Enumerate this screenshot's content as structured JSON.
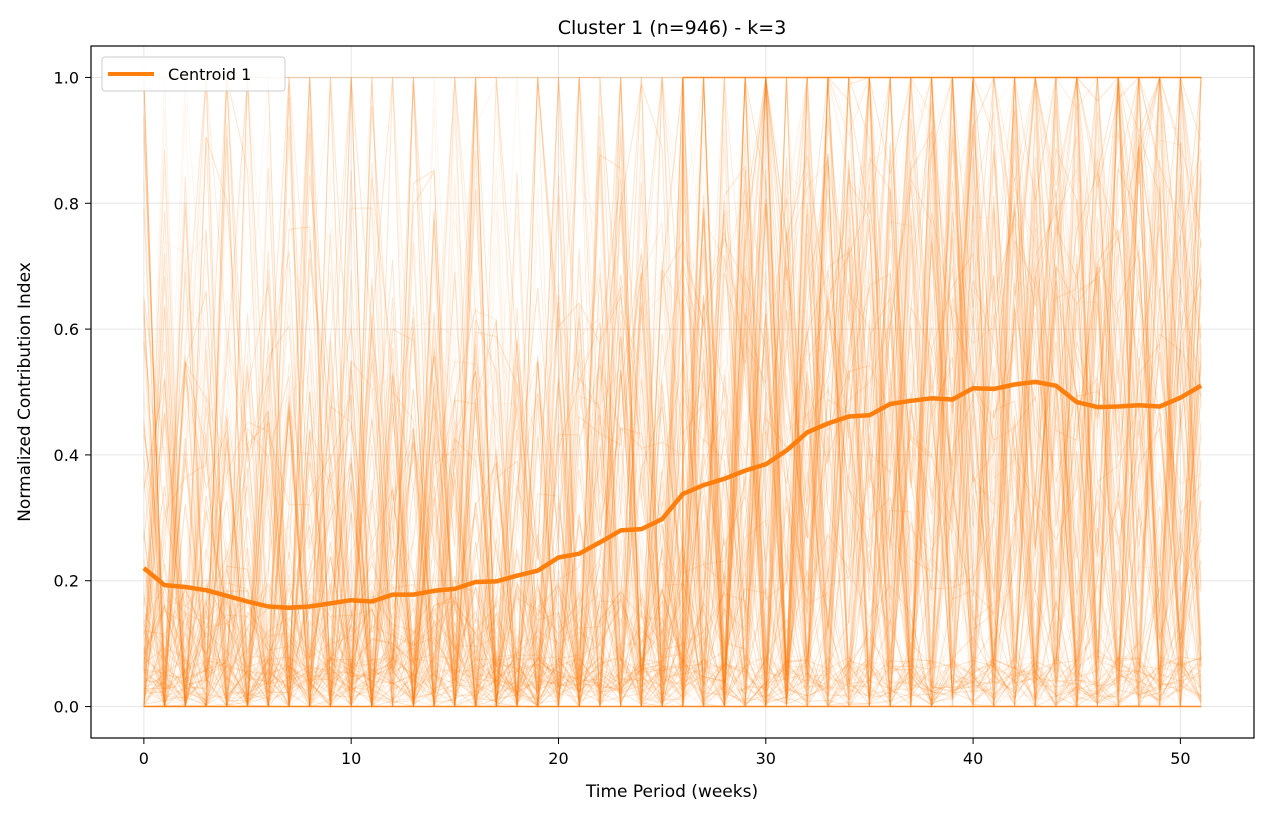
{
  "chart_data": {
    "type": "line",
    "title": "Cluster 1 (n=946) - k=3",
    "xlabel": "Time Period (weeks)",
    "ylabel": "Normalized Contribution Index",
    "xlim": [
      -2.55,
      53.55
    ],
    "ylim": [
      -0.05,
      1.05
    ],
    "xticks": [
      0,
      10,
      20,
      30,
      40,
      50
    ],
    "xtick_labels": [
      "0",
      "10",
      "20",
      "30",
      "40",
      "50"
    ],
    "yticks": [
      0.0,
      0.2,
      0.4,
      0.6,
      0.8,
      1.0
    ],
    "ytick_labels": [
      "0.0",
      "0.2",
      "0.4",
      "0.6",
      "0.8",
      "1.0"
    ],
    "grid": true,
    "legend_position": "top-left",
    "colors": {
      "series": "#ff7f0e",
      "background": "#ffffff",
      "grid": "#e6e6e6"
    },
    "series": [
      {
        "name": "Centroid 1",
        "x": [
          0,
          1,
          2,
          3,
          4,
          5,
          6,
          7,
          8,
          9,
          10,
          11,
          12,
          13,
          14,
          15,
          16,
          17,
          18,
          19,
          20,
          21,
          22,
          23,
          24,
          25,
          26,
          27,
          28,
          29,
          30,
          31,
          32,
          33,
          34,
          35,
          36,
          37,
          38,
          39,
          40,
          41,
          42,
          43,
          44,
          45,
          46,
          47,
          48,
          49,
          50,
          51
        ],
        "values": [
          0.22,
          0.193,
          0.19,
          0.185,
          0.176,
          0.167,
          0.159,
          0.157,
          0.159,
          0.164,
          0.169,
          0.167,
          0.178,
          0.178,
          0.184,
          0.187,
          0.198,
          0.199,
          0.208,
          0.216,
          0.237,
          0.243,
          0.261,
          0.28,
          0.282,
          0.298,
          0.338,
          0.352,
          0.362,
          0.375,
          0.385,
          0.407,
          0.436,
          0.45,
          0.461,
          0.463,
          0.481,
          0.486,
          0.49,
          0.488,
          0.506,
          0.505,
          0.512,
          0.516,
          0.51,
          0.484,
          0.476,
          0.477,
          0.479,
          0.477,
          0.491,
          0.51
        ]
      }
    ],
    "background_traces": {
      "count": 946,
      "x_range": [
        0,
        51
      ],
      "y_range": [
        0,
        1
      ],
      "description_shown": "individual member trajectories drawn with low opacity"
    }
  }
}
